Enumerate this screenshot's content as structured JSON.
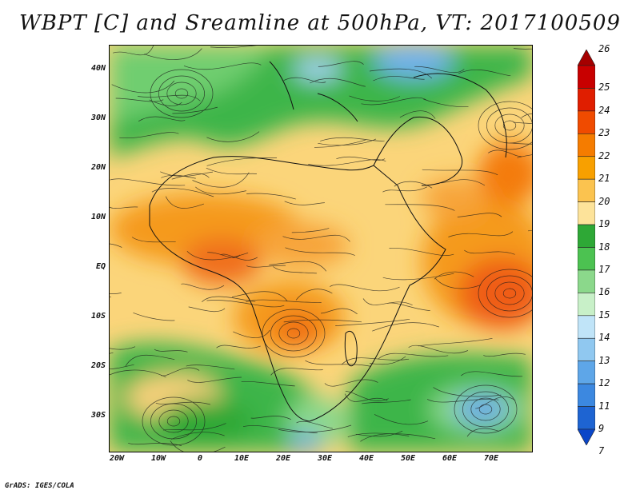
{
  "title": "WBPT [C] and Sreamline at 500hPa, VT: 2017100509",
  "credit": "GrADS: IGES/COLA",
  "axes": {
    "lat_ticks": [
      "40N",
      "30N",
      "20N",
      "10N",
      "EQ",
      "10S",
      "20S",
      "30S"
    ],
    "lon_ticks": [
      "20W",
      "10W",
      "0",
      "10E",
      "20E",
      "30E",
      "40E",
      "50E",
      "60E",
      "70E"
    ]
  },
  "colorbar": {
    "labels": [
      "26",
      "25",
      "24",
      "23",
      "22",
      "21",
      "20",
      "19",
      "18",
      "17",
      "16",
      "15",
      "14",
      "13",
      "12",
      "11",
      "9",
      "7"
    ],
    "colors": [
      "#a50000",
      "#c80000",
      "#e01e00",
      "#f04b00",
      "#f57c00",
      "#f8a000",
      "#fbc34f",
      "#fde39a",
      "#2ea836",
      "#4cc251",
      "#8bd88b",
      "#c8f0c8",
      "#c0e4f8",
      "#90c8f0",
      "#5ea6e8",
      "#3c88e0",
      "#1e64d2",
      "#0a46c8"
    ]
  },
  "map": {
    "region": "Africa, Middle East and western Indian Ocean",
    "lat_range": [
      -36,
      45
    ],
    "lon_range": [
      -25,
      80
    ]
  }
}
